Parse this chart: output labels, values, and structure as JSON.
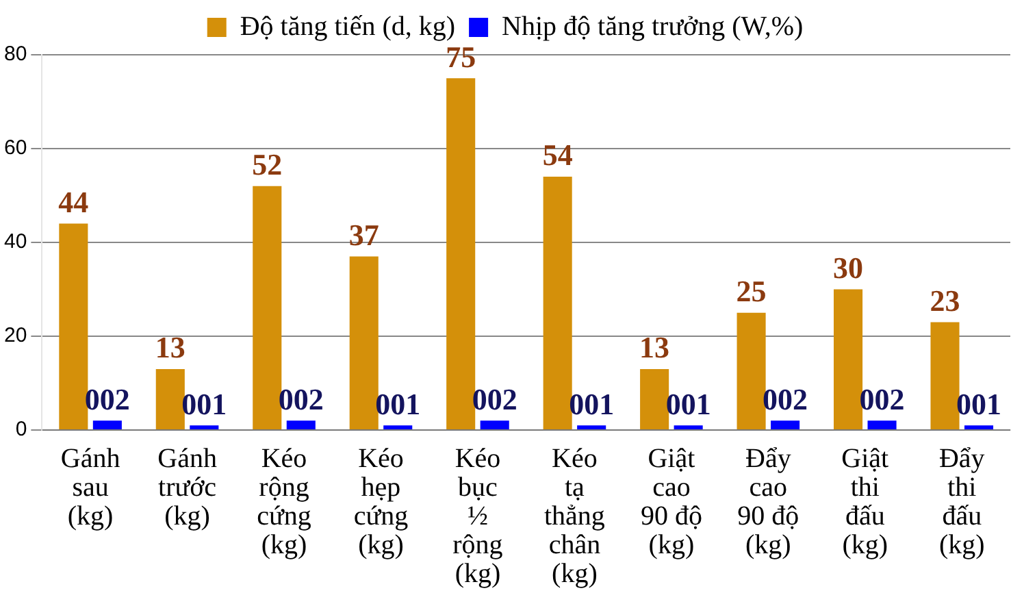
{
  "chart_data": {
    "type": "bar",
    "categories": [
      "Gánh\nsau\n(kg)",
      "Gánh\ntrước\n(kg)",
      "Kéo\nrộng\ncứng\n(kg)",
      "Kéo\nhẹp\ncứng\n(kg)",
      "Kéo\nbục\n½\nrộng\n(kg)",
      "Kéo\ntạ\nthẳng\nchân\n(kg)",
      "Giật\ncao\n90 độ\n(kg)",
      "Đẩy\ncao\n90 độ\n(kg)",
      "Giật\nthi\nđấu\n(kg)",
      "Đẩy\nthi\nđấu\n(kg)"
    ],
    "series": [
      {
        "name": "Độ tăng tiến (d, kg)",
        "color": "#d4900a",
        "values": [
          44,
          13,
          52,
          37,
          75,
          54,
          13,
          25,
          30,
          23
        ]
      },
      {
        "name": "Nhịp độ tăng trưởng (W,%)",
        "color": "#0000ff",
        "values": [
          2,
          1,
          2,
          1,
          2,
          1,
          1,
          2,
          2,
          1
        ],
        "value_labels": [
          "002",
          "001",
          "002",
          "001",
          "002",
          "001",
          "001",
          "002",
          "002",
          "001"
        ]
      }
    ],
    "data_labels": true,
    "ylim": [
      0,
      80
    ],
    "yticks": [
      0,
      20,
      40,
      60,
      80
    ],
    "grid": "y",
    "legend": "top"
  }
}
